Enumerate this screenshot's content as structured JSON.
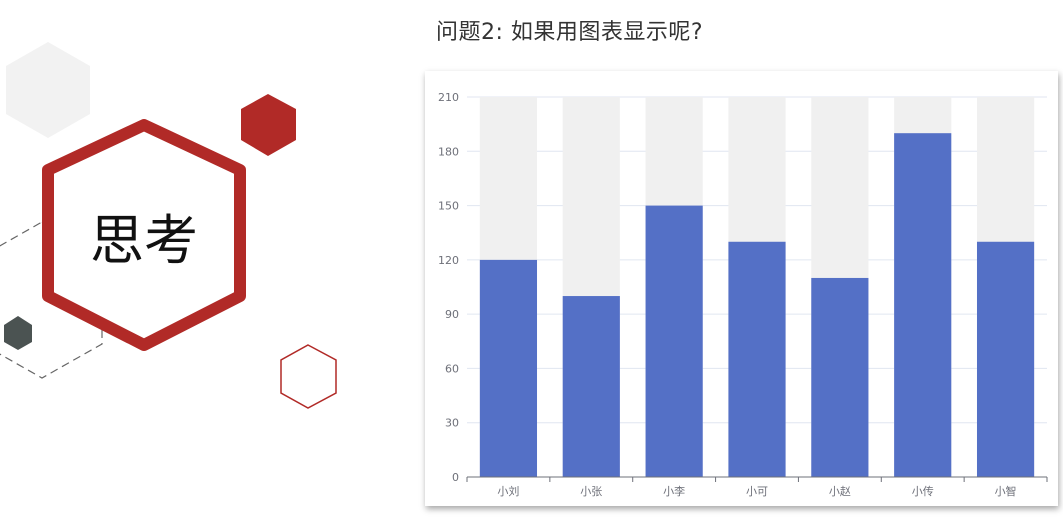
{
  "slide": {
    "think_label": "思考",
    "question": "问题2: 如果用图表显示呢?"
  },
  "colors": {
    "accent_red": "#b12a27",
    "dark_gray": "#4b5352",
    "light_gray": "#f2f2f2",
    "bar_blue": "#5470c6",
    "bar_background": "#f0f0f0"
  },
  "chart_data": {
    "type": "bar",
    "categories": [
      "小刘",
      "小张",
      "小李",
      "小可",
      "小赵",
      "小传",
      "小智"
    ],
    "values": [
      120,
      100,
      150,
      130,
      110,
      190,
      130
    ],
    "ylim": [
      0,
      210
    ],
    "yticks": [
      0,
      30,
      60,
      90,
      120,
      150,
      180,
      210
    ],
    "show_background_bars": true,
    "grid": true,
    "title": "",
    "xlabel": "",
    "ylabel": ""
  }
}
